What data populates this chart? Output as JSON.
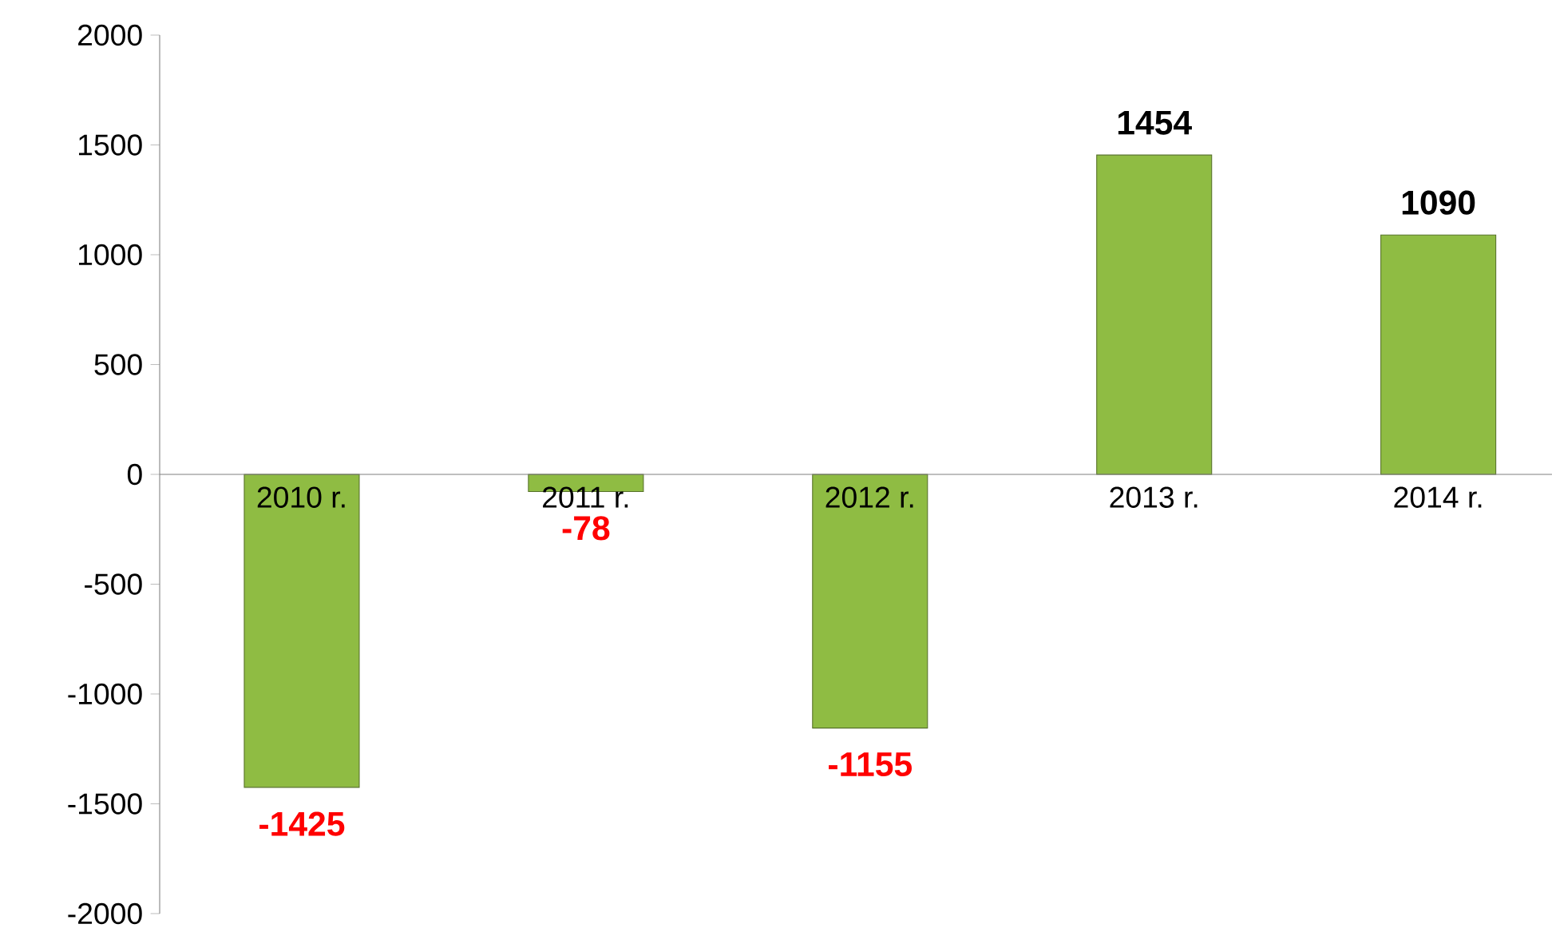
{
  "chart_data": {
    "type": "bar",
    "categories": [
      "2010 r.",
      "2011 r.",
      "2012 r.",
      "2013 r.",
      "2014 r."
    ],
    "values": [
      -1425,
      -78,
      -1155,
      1454,
      1090
    ],
    "color": "#8fbc43",
    "ylim": [
      -2000,
      2000
    ],
    "yticks": [
      -2000,
      -1500,
      -1000,
      -500,
      0,
      500,
      1000,
      1500,
      2000
    ],
    "data_labels": true
  }
}
